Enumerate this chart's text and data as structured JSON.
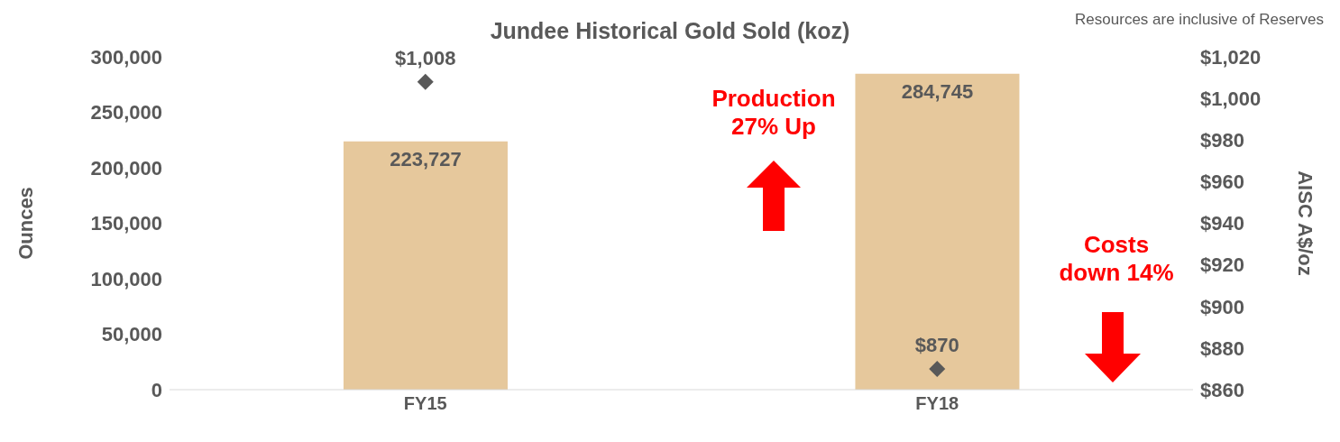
{
  "chart_data": {
    "type": "bar",
    "title": "Jundee Historical Gold Sold (koz)",
    "ylabel": "Ounces",
    "y2label": "AISC A$/oz",
    "categories": [
      "FY15",
      "FY18"
    ],
    "series": [
      {
        "color": "#e6c89c",
        "values": [
          223727,
          284745
        ],
        "value_labels": [
          "223,727",
          "284,745"
        ]
      },
      {
        "type": "scatter",
        "axis": "y2",
        "marker": "diamond",
        "color": "#595959",
        "x": [
          "FY15",
          "FY18"
        ],
        "values": [
          1008,
          870
        ],
        "value_labels": [
          "$1,008",
          "$870"
        ]
      }
    ],
    "ylim": [
      0,
      300000
    ],
    "yticks": [
      {
        "value": 0,
        "label": "0"
      },
      {
        "value": 50000,
        "label": "50,000"
      },
      {
        "value": 100000,
        "label": "100,000"
      },
      {
        "value": 150000,
        "label": "150,000"
      },
      {
        "value": 200000,
        "label": "200,000"
      },
      {
        "value": 250000,
        "label": "250,000"
      },
      {
        "value": 300000,
        "label": "300,000"
      }
    ],
    "y2lim": [
      860,
      1020
    ],
    "y2ticks": [
      {
        "value": 860,
        "label": "$860"
      },
      {
        "value": 880,
        "label": "$880"
      },
      {
        "value": 900,
        "label": "$900"
      },
      {
        "value": 920,
        "label": "$920"
      },
      {
        "value": 940,
        "label": "$940"
      },
      {
        "value": 960,
        "label": "$960"
      },
      {
        "value": 980,
        "label": "$980"
      },
      {
        "value": 1000,
        "label": "$1,000"
      },
      {
        "value": 1020,
        "label": "$1,020"
      }
    ],
    "grid": false,
    "legend": false,
    "annotations": [
      "Resources are inclusive of Reserves",
      "Production\n27% Up",
      "Costs\ndown 14%"
    ]
  }
}
